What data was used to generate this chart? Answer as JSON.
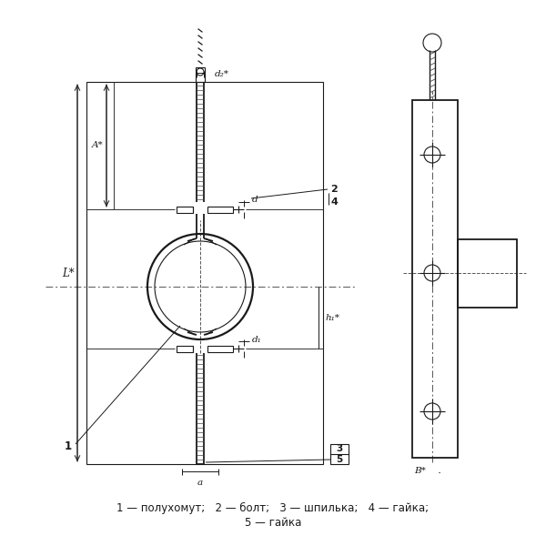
{
  "background_color": "#ffffff",
  "legend_line1": "1 — полухомут;   2 — болт;   3 — шпилька;   4 — гайка;",
  "legend_line2": "5 — гайка",
  "label_L": "L*",
  "label_A": "A*",
  "label_a": "a",
  "label_d": "d",
  "label_d1": "d₁",
  "label_d2": "d₂*",
  "label_h1": "h₁*",
  "label_B": "B*",
  "line_color": "#1a1a1a",
  "font_size_legend": 8.5,
  "font_size_label": 7.5
}
